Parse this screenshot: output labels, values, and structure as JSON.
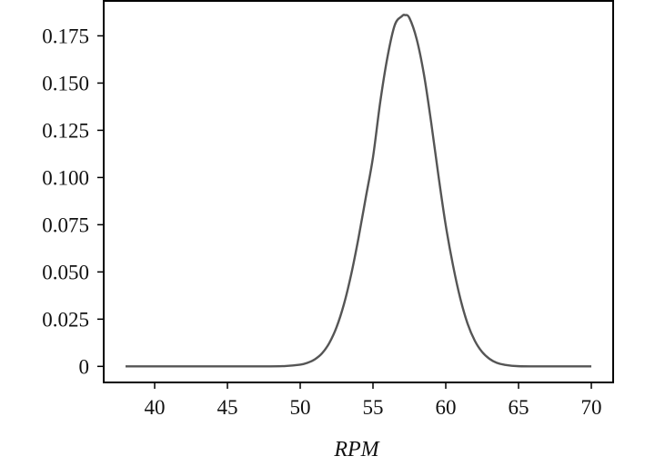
{
  "chart_data": {
    "type": "line",
    "title": "",
    "xlabel": "RPM",
    "ylabel": "",
    "xlim": [
      36.5,
      71.5
    ],
    "ylim": [
      -0.0085,
      0.1935
    ],
    "grid": false,
    "legend": "none",
    "x_ticks": [
      {
        "value": 40,
        "label": "40"
      },
      {
        "value": 45,
        "label": "45"
      },
      {
        "value": 50,
        "label": "50"
      },
      {
        "value": 55,
        "label": "55"
      },
      {
        "value": 60,
        "label": "60"
      },
      {
        "value": 65,
        "label": "65"
      },
      {
        "value": 70,
        "label": "70"
      }
    ],
    "y_ticks": [
      {
        "value": 0,
        "label": "0"
      },
      {
        "value": 0.025,
        "label": "0.025"
      },
      {
        "value": 0.05,
        "label": "0.050"
      },
      {
        "value": 0.075,
        "label": "0.075"
      },
      {
        "value": 0.1,
        "label": "0.100"
      },
      {
        "value": 0.125,
        "label": "0.125"
      },
      {
        "value": 0.15,
        "label": "0.150"
      },
      {
        "value": 0.175,
        "label": "0.175"
      }
    ],
    "series": [
      {
        "color": "#555555",
        "x": [
          38,
          47,
          49,
          50,
          50.5,
          51,
          51.5,
          52,
          52.5,
          53,
          53.5,
          54,
          54.5,
          55,
          55.5,
          56,
          56.5,
          57,
          57.2,
          57.5,
          58,
          58.5,
          59,
          59.5,
          60,
          60.5,
          61,
          61.5,
          62,
          62.5,
          63,
          63.5,
          64,
          65,
          67,
          70
        ],
        "y": [
          0,
          0,
          0.0002,
          0.0009,
          0.0019,
          0.0037,
          0.0069,
          0.0124,
          0.0208,
          0.0328,
          0.0486,
          0.0678,
          0.0892,
          0.1107,
          0.1401,
          0.164,
          0.1808,
          0.1855,
          0.186,
          0.1845,
          0.1733,
          0.1546,
          0.129,
          0.1008,
          0.0746,
          0.0534,
          0.0359,
          0.0226,
          0.0135,
          0.0076,
          0.004,
          0.0019,
          0.0009,
          0.0001,
          0,
          0
        ]
      }
    ]
  }
}
